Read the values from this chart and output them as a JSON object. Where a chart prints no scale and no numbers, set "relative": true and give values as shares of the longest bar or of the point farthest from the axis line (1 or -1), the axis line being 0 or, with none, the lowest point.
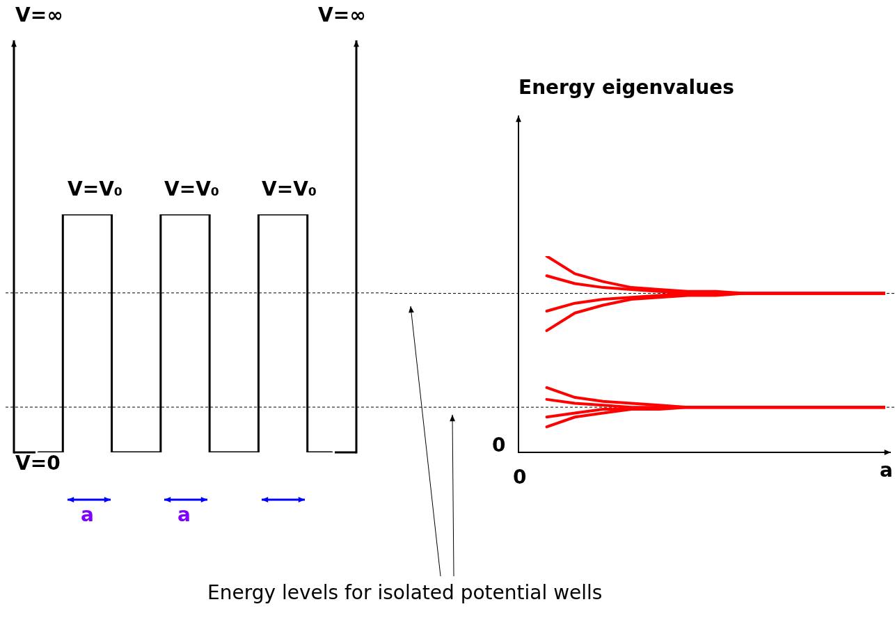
{
  "chart_data": [
    {
      "type": "step",
      "relative": true,
      "marker": "none",
      "categories": [
        null,
        null,
        null,
        null,
        null,
        null,
        null
      ],
      "series": [
        {
          "color": "#000000",
          "values": [
            0,
            1,
            0,
            1,
            0,
            1,
            0
          ]
        }
      ],
      "ref_lines": [
        {
          "axis": "y",
          "value": 0.67,
          "color": "#000000",
          "line_style": "dashed"
        },
        {
          "axis": "y",
          "value": 0.19,
          "color": "#000000",
          "line_style": "dashed"
        }
      ],
      "annotations": [
        "V=∞",
        "V=∞",
        "V=V₀",
        "V=V₀",
        "V=V₀",
        "V=0",
        "a",
        "a"
      ]
    },
    {
      "type": "line",
      "relative": true,
      "marker": "none",
      "title": "Energy eigenvalues",
      "xlabel": "a",
      "categories": [
        null,
        null,
        null,
        null,
        null,
        null,
        null,
        null,
        null,
        null,
        null,
        null,
        null,
        null
      ],
      "series": [
        {
          "color": "#ff0000",
          "values": [
            null,
            1.0,
            0.91,
            0.87,
            0.84,
            0.83,
            0.82,
            0.82,
            0.81,
            0.81,
            0.81,
            0.81,
            0.81,
            0.81
          ]
        },
        {
          "color": "#ff0000",
          "values": [
            null,
            0.9,
            0.86,
            0.84,
            0.83,
            0.82,
            0.81,
            0.81,
            0.81,
            0.81,
            0.81,
            0.81,
            0.81,
            0.81
          ]
        },
        {
          "color": "#ff0000",
          "values": [
            null,
            0.72,
            0.76,
            0.78,
            0.79,
            0.8,
            0.81,
            0.81,
            0.81,
            0.81,
            0.81,
            0.81,
            0.81,
            0.81
          ]
        },
        {
          "color": "#ff0000",
          "values": [
            null,
            0.62,
            0.71,
            0.75,
            0.78,
            0.79,
            0.8,
            0.8,
            0.81,
            0.81,
            0.81,
            0.81,
            0.81,
            0.81
          ]
        },
        {
          "color": "#ff0000",
          "values": [
            null,
            0.33,
            0.28,
            0.26,
            0.25,
            0.24,
            0.23,
            0.23,
            0.23,
            0.23,
            0.23,
            0.23,
            0.23,
            0.23
          ]
        },
        {
          "color": "#ff0000",
          "values": [
            null,
            0.27,
            0.25,
            0.24,
            0.23,
            0.23,
            0.23,
            0.23,
            0.23,
            0.23,
            0.23,
            0.23,
            0.23,
            0.23
          ]
        },
        {
          "color": "#ff0000",
          "values": [
            null,
            0.18,
            0.2,
            0.22,
            0.22,
            0.23,
            0.23,
            0.23,
            0.23,
            0.23,
            0.23,
            0.23,
            0.23,
            0.23
          ]
        },
        {
          "color": "#ff0000",
          "values": [
            null,
            0.13,
            0.18,
            0.2,
            0.22,
            0.22,
            0.23,
            0.23,
            0.23,
            0.23,
            0.23,
            0.23,
            0.23,
            0.23
          ]
        }
      ],
      "ref_lines": [
        {
          "axis": "y",
          "value": 0.81,
          "color": "#000000",
          "line_style": "dashed"
        },
        {
          "axis": "y",
          "value": 0.23,
          "color": "#000000",
          "line_style": "dashed"
        }
      ],
      "annotations": [
        "0",
        "0",
        "Energy levels for isolated potential wells"
      ]
    }
  ]
}
